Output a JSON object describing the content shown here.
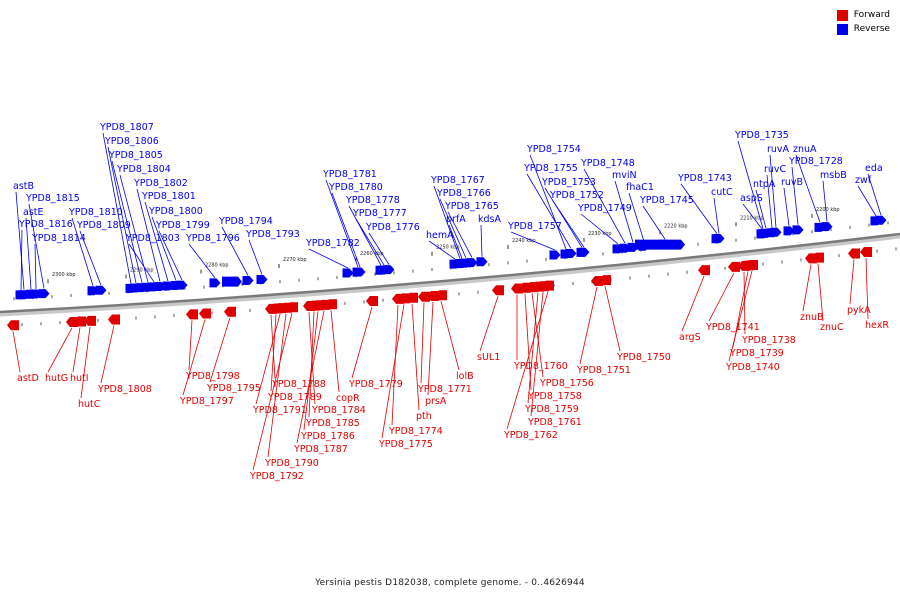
{
  "colors": {
    "forward": "#e00000",
    "reverse": "#0000ee",
    "axis": "#808080",
    "tick": "#333333"
  },
  "legend": [
    {
      "label": "Forward",
      "color": "#e00000"
    },
    {
      "label": "Reverse",
      "color": "#0000ee"
    }
  ],
  "caption": "Yersinia pestis D182038, complete genome. - 0..4626944",
  "scale_labels": [
    "2300 kbp",
    "2290 kbp",
    "2280 kbp",
    "2270 kbp",
    "2260 kbp",
    "2250 kbp",
    "2240 kbp",
    "2230 kbp",
    "2220 kbp",
    "2210 kbp",
    "2200 kbp"
  ],
  "reverse_genes": [
    "astB",
    "astE",
    "YPD8_1816",
    "YPD8_1815",
    "YPD8_1814",
    "YPD8_1810",
    "YPD8_1809",
    "YPD8_1807",
    "YPD8_1806",
    "YPD8_1805",
    "YPD8_1804",
    "YPD8_1803",
    "YPD8_1802",
    "YPD8_1801",
    "YPD8_1800",
    "YPD8_1799",
    "YPD8_1796",
    "YPD8_1794",
    "YPD8_1793",
    "YPD8_1782",
    "YPD8_1781",
    "YPD8_1780",
    "YPD8_1778",
    "YPD8_1777",
    "YPD8_1776",
    "hemA",
    "YPD8_1767",
    "YPD8_1766",
    "prfA",
    "YPD8_1765",
    "kdsA",
    "YPD8_1757",
    "YPD8_1754",
    "YPD8_1755",
    "YPD8_1753",
    "YPD8_1752",
    "YPD8_1749",
    "YPD8_1748",
    "mviN",
    "fhaC1",
    "YPD8_1745",
    "YPD8_1743",
    "cutC",
    "YPD8_1735",
    "ruvA",
    "znuA",
    "ruvC",
    "YPD8_1728",
    "ntpA",
    "ruvB",
    "msbB",
    "aspS",
    "eda",
    "zwf"
  ],
  "forward_genes": [
    "astD",
    "hutG",
    "hutI",
    "hutC",
    "YPD8_1808",
    "YPD8_1798",
    "YPD8_1797",
    "YPD8_1795",
    "YPD8_1788",
    "YPD8_1789",
    "YPD8_1791",
    "YPD8_1790",
    "YPD8_1792",
    "YPD8_1784",
    "YPD8_1785",
    "YPD8_1786",
    "YPD8_1787",
    "copR",
    "YPD8_1779",
    "YPD8_1774",
    "YPD8_1775",
    "pth",
    "YPD8_1771",
    "prsA",
    "lolB",
    "sUL1",
    "YPD8_1760",
    "YPD8_1758",
    "YPD8_1756",
    "YPD8_1759",
    "YPD8_1761",
    "YPD8_1762",
    "YPD8_1751",
    "YPD8_1750",
    "argS",
    "YPD8_1741",
    "YPD8_1738",
    "YPD8_1739",
    "YPD8_1740",
    "znuB",
    "znuC",
    "pykA",
    "hexR"
  ]
}
